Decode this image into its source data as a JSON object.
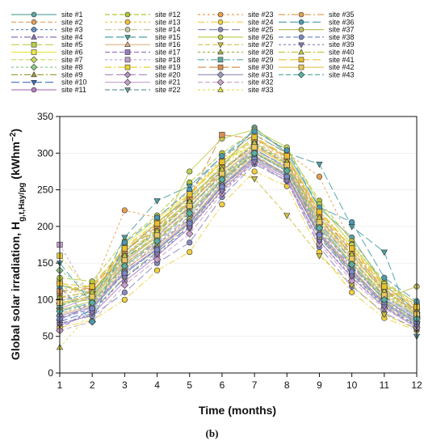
{
  "panel_label": "(b)",
  "chart_data": {
    "type": "line",
    "title": "",
    "xlabel": "Time (months)",
    "ylabel_main": "Global solar irradiation, H",
    "ylabel_sub": "g,t,Hay/pg",
    "ylabel_unit_open": " (kWhm",
    "ylabel_unit_sup": "−2",
    "ylabel_unit_close": ")",
    "xlim": [
      1,
      12
    ],
    "ylim": [
      0,
      350
    ],
    "x_ticks": [
      1,
      2,
      3,
      4,
      5,
      6,
      7,
      8,
      9,
      10,
      11,
      12
    ],
    "y_ticks": [
      0,
      50,
      100,
      150,
      200,
      250,
      300,
      350
    ],
    "x": [
      1,
      2,
      3,
      4,
      5,
      6,
      7,
      8,
      9,
      10,
      11,
      12
    ],
    "grid": true,
    "legend_position": "top",
    "series": [
      {
        "name": "site #1",
        "color": "#5fa7a0",
        "marker": "circle",
        "values": [
          120,
          108,
          165,
          205,
          240,
          280,
          335,
          300,
          225,
          185,
          120,
          85
        ]
      },
      {
        "name": "site #2",
        "color": "#e0a060",
        "marker": "circle",
        "values": [
          105,
          98,
          150,
          180,
          225,
          275,
          315,
          290,
          215,
          165,
          115,
          80
        ]
      },
      {
        "name": "site #3",
        "color": "#6a8fc6",
        "marker": "circle",
        "values": [
          85,
          95,
          135,
          170,
          205,
          260,
          300,
          275,
          195,
          140,
          95,
          70
        ]
      },
      {
        "name": "site #4",
        "color": "#8c6fb8",
        "marker": "triangle",
        "values": [
          75,
          90,
          140,
          175,
          210,
          265,
          305,
          280,
          190,
          145,
          100,
          72
        ]
      },
      {
        "name": "site #5",
        "color": "#b8cf4a",
        "marker": "square",
        "values": [
          110,
          120,
          170,
          195,
          235,
          285,
          320,
          295,
          220,
          170,
          118,
          90
        ]
      },
      {
        "name": "site #6",
        "color": "#e8e84a",
        "marker": "square",
        "values": [
          125,
          100,
          175,
          210,
          245,
          290,
          310,
          285,
          210,
          160,
          110,
          85
        ]
      },
      {
        "name": "site #7",
        "color": "#c8d860",
        "marker": "diamond",
        "values": [
          95,
          105,
          160,
          190,
          228,
          270,
          300,
          280,
          200,
          150,
          105,
          78
        ]
      },
      {
        "name": "site #8",
        "color": "#8fc98a",
        "marker": "diamond",
        "values": [
          140,
          110,
          155,
          200,
          232,
          275,
          312,
          288,
          205,
          155,
          108,
          82
        ]
      },
      {
        "name": "site #9",
        "color": "#a0a040",
        "marker": "triangle",
        "values": [
          90,
          112,
          158,
          185,
          218,
          262,
          298,
          270,
          190,
          138,
          98,
          70
        ]
      },
      {
        "name": "site #10",
        "color": "#3a6fb8",
        "marker": "triangle-down",
        "values": [
          70,
          85,
          130,
          165,
          200,
          255,
          295,
          270,
          185,
          135,
          92,
          65
        ]
      },
      {
        "name": "site #11",
        "color": "#b47fc0",
        "marker": "circle",
        "values": [
          65,
          80,
          125,
          160,
          198,
          250,
          290,
          265,
          180,
          130,
          90,
          62
        ]
      },
      {
        "name": "site #12",
        "color": "#b5c63a",
        "marker": "circle",
        "values": [
          130,
          125,
          180,
          215,
          260,
          300,
          330,
          305,
          235,
          180,
          125,
          95
        ]
      },
      {
        "name": "site #13",
        "color": "#f0c040",
        "marker": "circle",
        "values": [
          115,
          118,
          168,
          202,
          238,
          282,
          318,
          292,
          218,
          168,
          115,
          88
        ]
      },
      {
        "name": "site #14",
        "color": "#c8c8a0",
        "marker": "circle",
        "values": [
          100,
          102,
          150,
          182,
          222,
          268,
          305,
          282,
          205,
          155,
          106,
          80
        ]
      },
      {
        "name": "site #15",
        "color": "#4aa0a0",
        "marker": "triangle-down",
        "values": [
          150,
          95,
          185,
          235,
          255,
          295,
          325,
          300,
          285,
          200,
          165,
          50
        ]
      },
      {
        "name": "site #16",
        "color": "#e0b080",
        "marker": "triangle",
        "values": [
          80,
          92,
          142,
          172,
          208,
          258,
          296,
          272,
          192,
          142,
          96,
          70
        ]
      },
      {
        "name": "site #17",
        "color": "#9a7ac0",
        "marker": "square",
        "values": [
          60,
          88,
          138,
          168,
          205,
          254,
          292,
          268,
          188,
          136,
          94,
          68
        ]
      },
      {
        "name": "site #18",
        "color": "#c0a0d0",
        "marker": "square",
        "values": [
          175,
          100,
          162,
          195,
          230,
          278,
          308,
          284,
          208,
          158,
          104,
          78
        ]
      },
      {
        "name": "site #19",
        "color": "#e8d030",
        "marker": "square",
        "values": [
          160,
          108,
          172,
          206,
          242,
          288,
          322,
          296,
          222,
          172,
          120,
          92
        ]
      },
      {
        "name": "site #20",
        "color": "#b090c0",
        "marker": "diamond",
        "values": [
          72,
          96,
          146,
          178,
          214,
          264,
          300,
          276,
          196,
          146,
          100,
          74
        ]
      },
      {
        "name": "site #21",
        "color": "#c0a0c8",
        "marker": "diamond",
        "values": [
          88,
          104,
          152,
          186,
          226,
          272,
          306,
          280,
          202,
          150,
          102,
          76
        ]
      },
      {
        "name": "site #22",
        "color": "#6a9aa0",
        "marker": "triangle-down",
        "values": [
          98,
          110,
          160,
          192,
          232,
          276,
          312,
          286,
          212,
          162,
          112,
          84
        ]
      },
      {
        "name": "site #23",
        "color": "#e8a050",
        "marker": "circle",
        "values": [
          108,
          115,
          222,
          212,
          248,
          292,
          326,
          300,
          268,
          176,
          122,
          92
        ]
      },
      {
        "name": "site #24",
        "color": "#f0d040",
        "marker": "circle",
        "values": [
          62,
          72,
          100,
          140,
          165,
          230,
          275,
          255,
          165,
          110,
          75,
          58
        ]
      },
      {
        "name": "site #25",
        "color": "#8a8ac0",
        "marker": "circle",
        "values": [
          68,
          78,
          110,
          150,
          178,
          240,
          285,
          262,
          172,
          118,
          82,
          60
        ]
      },
      {
        "name": "site #26",
        "color": "#c0d050",
        "marker": "circle",
        "values": [
          95,
          100,
          155,
          185,
          275,
          320,
          332,
          308,
          230,
          175,
          122,
          96
        ]
      },
      {
        "name": "site #27",
        "color": "#d0c040",
        "marker": "triangle-down",
        "values": [
          120,
          112,
          162,
          196,
          236,
          280,
          265,
          215,
          160,
          120,
          80,
          60
        ]
      },
      {
        "name": "site #28",
        "color": "#a0b850",
        "marker": "triangle",
        "values": [
          82,
          94,
          144,
          176,
          212,
          262,
          300,
          278,
          198,
          148,
          100,
          72
        ]
      },
      {
        "name": "site #29",
        "color": "#5aa8a0",
        "marker": "square",
        "values": [
          92,
          106,
          156,
          188,
          226,
          270,
          304,
          282,
          204,
          154,
          104,
          78
        ]
      },
      {
        "name": "site #30",
        "color": "#d89050",
        "marker": "square",
        "values": [
          112,
          116,
          166,
          200,
          240,
          325,
          320,
          294,
          216,
          166,
          114,
          86
        ]
      },
      {
        "name": "site #31",
        "color": "#9a9ac0",
        "marker": "diamond",
        "values": [
          78,
          90,
          138,
          170,
          206,
          256,
          294,
          270,
          190,
          140,
          96,
          70
        ]
      },
      {
        "name": "site #32",
        "color": "#c8a0c8",
        "marker": "diamond",
        "values": [
          58,
          70,
          120,
          155,
          190,
          245,
          288,
          262,
          176,
          126,
          88,
          62
        ]
      },
      {
        "name": "site #33",
        "color": "#e0e050",
        "marker": "triangle",
        "values": [
          35,
          85,
          132,
          166,
          202,
          252,
          292,
          268,
          186,
          136,
          92,
          66
        ]
      },
      {
        "name": "site #35",
        "color": "#e0a050",
        "marker": "circle",
        "values": [
          102,
          112,
          160,
          194,
          232,
          276,
          310,
          286,
          210,
          160,
          110,
          82
        ]
      },
      {
        "name": "site #36",
        "color": "#4a9ab0",
        "marker": "circle",
        "values": [
          118,
          70,
          178,
          212,
          250,
          296,
          330,
          304,
          226,
          206,
          130,
          98
        ]
      },
      {
        "name": "site #37",
        "color": "#c0c060",
        "marker": "circle",
        "values": [
          86,
          98,
          148,
          182,
          220,
          266,
          302,
          278,
          200,
          150,
          102,
          118
        ]
      },
      {
        "name": "site #38",
        "color": "#7a8ac8",
        "marker": "circle",
        "values": [
          74,
          88,
          136,
          168,
          204,
          254,
          292,
          268,
          188,
          138,
          94,
          68
        ]
      },
      {
        "name": "site #39",
        "color": "#8a7ab8",
        "marker": "triangle-down",
        "values": [
          66,
          82,
          130,
          162,
          198,
          248,
          288,
          262,
          180,
          132,
          90,
          64
        ]
      },
      {
        "name": "site #40",
        "color": "#c0c840",
        "marker": "triangle",
        "values": [
          104,
          110,
          160,
          194,
          234,
          278,
          314,
          288,
          212,
          162,
          112,
          84
        ]
      },
      {
        "name": "site #41",
        "color": "#e8c030",
        "marker": "square",
        "values": [
          122,
          118,
          170,
          204,
          244,
          288,
          322,
          296,
          220,
          170,
          118,
          90
        ]
      },
      {
        "name": "site #42",
        "color": "#e8c860",
        "marker": "square",
        "values": [
          96,
          104,
          154,
          188,
          228,
          272,
          308,
          284,
          206,
          156,
          106,
          80
        ]
      },
      {
        "name": "site #43",
        "color": "#5ab0a0",
        "marker": "diamond",
        "values": [
          84,
          96,
          146,
          180,
          218,
          264,
          300,
          276,
          198,
          148,
          100,
          74
        ]
      }
    ]
  }
}
